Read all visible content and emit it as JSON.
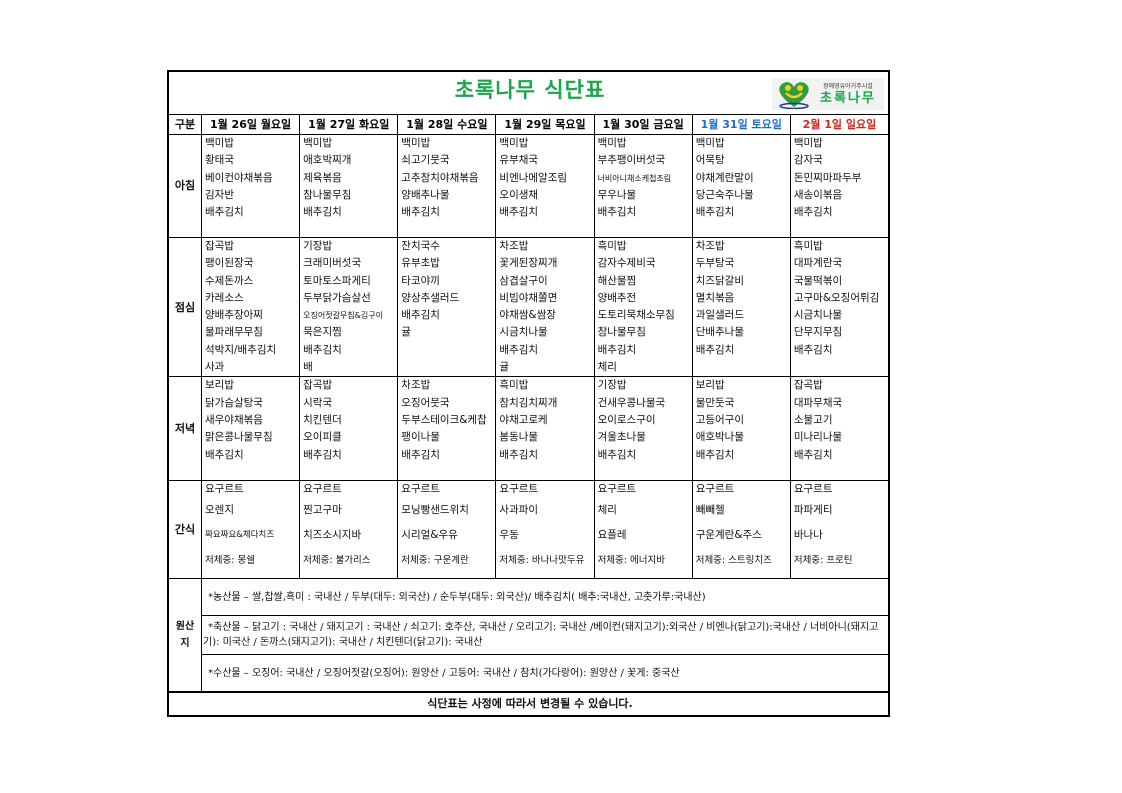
{
  "title": "초록나무 식단표",
  "logo": {
    "subtitle": "장애영유아거주시설",
    "name": "초록나무"
  },
  "header": {
    "label": "구분",
    "days": [
      {
        "label": "1월 26일 월요일",
        "color": "#000000"
      },
      {
        "label": "1월 27일 화요일",
        "color": "#000000"
      },
      {
        "label": "1월 28일 수요일",
        "color": "#000000"
      },
      {
        "label": "1월 29일 목요일",
        "color": "#000000"
      },
      {
        "label": "1월 30일 금요일",
        "color": "#000000"
      },
      {
        "label": "1월 31일 토요일",
        "color": "#1a6fd1"
      },
      {
        "label": "2월 1일 일요일",
        "color": "#e0201b"
      }
    ]
  },
  "meals": [
    {
      "label": "아침",
      "days": [
        [
          "백미밥",
          "황태국",
          "베이컨야채볶음",
          "김자반",
          "배추김치"
        ],
        [
          "백미밥",
          "애호박찌개",
          "제육볶음",
          "참나물무침",
          "배추김치"
        ],
        [
          "백미밥",
          "쇠고기뭇국",
          "고추참치야채볶음",
          "양배추나물",
          "배추김치"
        ],
        [
          "백미밥",
          "유부채국",
          "비엔나메알조림",
          "오이생채",
          "배추김치"
        ],
        [
          "백미밥",
          "부추팽이버섯국",
          "너비아니채소케첩조림",
          "무우나물",
          "배추김치"
        ],
        [
          "백미밥",
          "어묵탕",
          "야채계란말이",
          "당근숙주나물",
          "배추김치"
        ],
        [
          "백미밥",
          "감자국",
          "돈민찌마파두부",
          "새송이볶음",
          "배추김치"
        ]
      ]
    },
    {
      "label": "점심",
      "days": [
        [
          "잡곡밥",
          "팽이된장국",
          "수제돈까스",
          "카레소스",
          "양배추장아찌",
          "물파래무무침",
          "석박지/배추김치",
          "사과"
        ],
        [
          "기장밥",
          "크래미버섯국",
          "토마토스파게티",
          "두부닭가슴살선",
          "오징어젓갈무침&김구이",
          "묵은지찜",
          "배추김치",
          "배"
        ],
        [
          "잔치국수",
          "유부초밥",
          "타코야끼",
          "양상추샐러드",
          "배추김치",
          "귤"
        ],
        [
          "차조밥",
          "꽃게된장찌개",
          "삼겹살구이",
          "비빔야채쫄면",
          "야채쌈&쌈장",
          "시금치나물",
          "배추김치",
          "귤"
        ],
        [
          "흑미밥",
          "감자수제비국",
          "해산물찜",
          "양배추전",
          "도토리묵채소무침",
          "참나물무침",
          "배추김치",
          "체리"
        ],
        [
          "차조밥",
          "두부탕국",
          "치즈닭갈비",
          "멸치볶음",
          "과일샐러드",
          "단배추나물",
          "배추김치"
        ],
        [
          "흑미밥",
          "대파계란국",
          "국물떡볶이",
          "고구마&오징어튀김",
          "시금치나물",
          "단무지무침",
          "배추김치"
        ]
      ]
    },
    {
      "label": "저녁",
      "days": [
        [
          "보리밥",
          "닭가슴살탕국",
          "새우야채볶음",
          "맑은콩나물무침",
          "배추김치"
        ],
        [
          "잡곡밥",
          "시락국",
          "치킨텐더",
          "오이피클",
          "배추김치"
        ],
        [
          "차조밥",
          "오징어뭇국",
          "두부스테이크&케찹",
          "팽이나물",
          "배추김치"
        ],
        [
          "흑미밥",
          "참치김치찌개",
          "야채고로케",
          "봄동나물",
          "배추김치"
        ],
        [
          "기장밥",
          "건새우콩나물국",
          "오이로스구이",
          "겨울초나물",
          "배추김치"
        ],
        [
          "보리밥",
          "물만둣국",
          "고등어구이",
          "애호박나물",
          "배추김치"
        ],
        [
          "잡곡밥",
          "대파무채국",
          "소불고기",
          "미나리나물",
          "배추김치"
        ]
      ]
    },
    {
      "label": "간식",
      "days": [
        [
          "요구르트",
          "오렌지",
          "짜요짜요&체다치즈",
          "저체중: 몽쉘"
        ],
        [
          "요구르트",
          "찐고구마",
          "치즈소시지바",
          "저체중: 불가리스"
        ],
        [
          "요구르트",
          "모닝빵샌드위치",
          "시리얼&우유",
          "저체중: 구운계란"
        ],
        [
          "요구르트",
          "사과파이",
          "우동",
          "저체중: 바나나맛두유"
        ],
        [
          "요구르트",
          "체리",
          "요플레",
          "저체중: 에너지바"
        ],
        [
          "요구르트",
          "빼빼첼",
          "구운계란&주스",
          "저체중: 스트링치즈"
        ],
        [
          "요구르트",
          "파파게티",
          "바나나",
          "저체중: 프로틴"
        ]
      ]
    }
  ],
  "origin": {
    "label": "원산지",
    "rows": [
      "*농산물 – 쌀,찹쌀,흑미 : 국내산 / 두부(대두: 외국산) / 순두부(대두: 외국산)/ 배추김치( 배추:국내산, 고춧가루:국내산)",
      "*축산물 – 닭고기 : 국내산 / 돼지고기 : 국내산 / 쇠고기: 호주산, 국내산 / 오리고기: 국내산 /베이컨(돼지고기):외국산 / 비엔나(닭고기):국내산 / 너비아니(돼지고기): 미국산 / 돈까스(돼지고기): 국내산 / 치킨텐더(닭고기): 국내산",
      "*수산물 – 오징어: 국내산 / 오징어젓갈(오징어): 원양산  / 고등어: 국내산  / 참치(가다랑어): 원양산 / 꽃게: 중국산"
    ]
  },
  "footer": "식단표는 사정에 따라서 변경될 수 있습니다."
}
